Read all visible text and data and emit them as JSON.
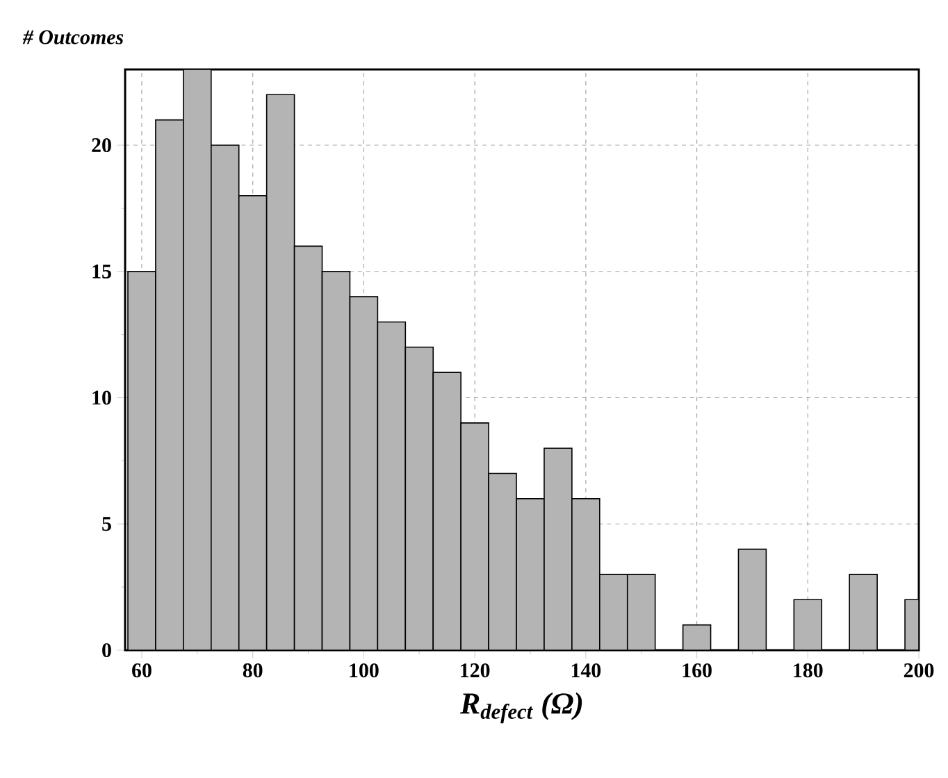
{
  "chart_data": {
    "type": "histogram",
    "ylabel": "# Outcomes",
    "xlabel": "R$_{defect}$ (Ω)",
    "bins": [
      57.5,
      62.5,
      67.5,
      72.5,
      77.5,
      82.5,
      87.5,
      92.5,
      97.5,
      102.5,
      107.5,
      112.5,
      117.5,
      122.5,
      127.5,
      132.5,
      137.5,
      142.5,
      147.5,
      152.5,
      157.5,
      162.5,
      167.5,
      172.5,
      177.5,
      182.5,
      187.5,
      192.5,
      197.5,
      200
    ],
    "values": [
      15,
      21,
      23,
      20,
      18,
      22,
      16,
      15,
      14,
      13,
      12,
      11,
      9,
      7,
      6,
      8,
      6,
      3,
      3,
      0,
      1,
      0,
      4,
      0,
      2,
      0,
      3,
      0,
      2
    ],
    "color": "#b4b4b4",
    "xlim": [
      57,
      200
    ],
    "ylim": [
      0,
      23
    ],
    "xticks": [
      60,
      80,
      100,
      120,
      140,
      160,
      180,
      200
    ],
    "yticks": [
      0,
      5,
      10,
      15,
      20
    ],
    "grid": true
  }
}
